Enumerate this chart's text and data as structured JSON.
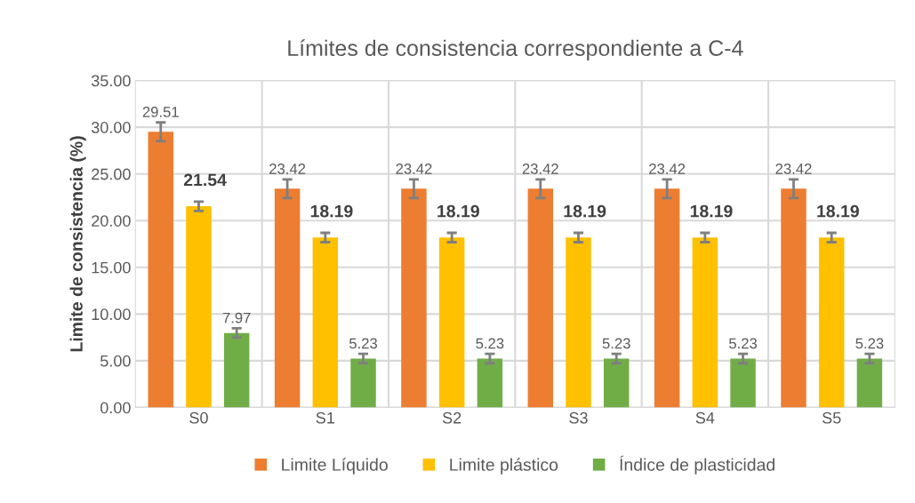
{
  "chart_data": {
    "type": "bar",
    "title": "Límites de consistencia correspondiente a C-4",
    "ylabel": "Limite de consistencia (%)",
    "categories": [
      "S0",
      "S1",
      "S2",
      "S3",
      "S4",
      "S5"
    ],
    "series": [
      {
        "name": "Limite Líquido",
        "color": "#ed7d31",
        "values": [
          29.51,
          23.42,
          23.42,
          23.42,
          23.42,
          23.42
        ],
        "errors": [
          1,
          1,
          1,
          1,
          1,
          1
        ]
      },
      {
        "name": "Limite plástico",
        "color": "#ffc000",
        "values": [
          21.54,
          18.19,
          18.19,
          18.19,
          18.19,
          18.19
        ],
        "errors": [
          0.5,
          0.5,
          0.5,
          0.5,
          0.5,
          0.5
        ]
      },
      {
        "name": "Índice de plasticidad",
        "color": "#70ad47",
        "values": [
          7.97,
          5.23,
          5.23,
          5.23,
          5.23,
          5.23
        ],
        "errors": [
          0.5,
          0.5,
          0.5,
          0.5,
          0.5,
          0.5
        ]
      }
    ],
    "ylim": [
      0,
      35
    ],
    "yticks": [
      {
        "value": 0,
        "label": "0.00"
      },
      {
        "value": 5,
        "label": "5.00"
      },
      {
        "value": 10,
        "label": "10.00"
      },
      {
        "value": 15,
        "label": "15.00"
      },
      {
        "value": 20,
        "label": "20.00"
      },
      {
        "value": 25,
        "label": "25.00"
      },
      {
        "value": 30,
        "label": "30.00"
      },
      {
        "value": 35,
        "label": "35.00"
      }
    ],
    "data_labels": true,
    "grid": true,
    "legend": "bottom"
  }
}
